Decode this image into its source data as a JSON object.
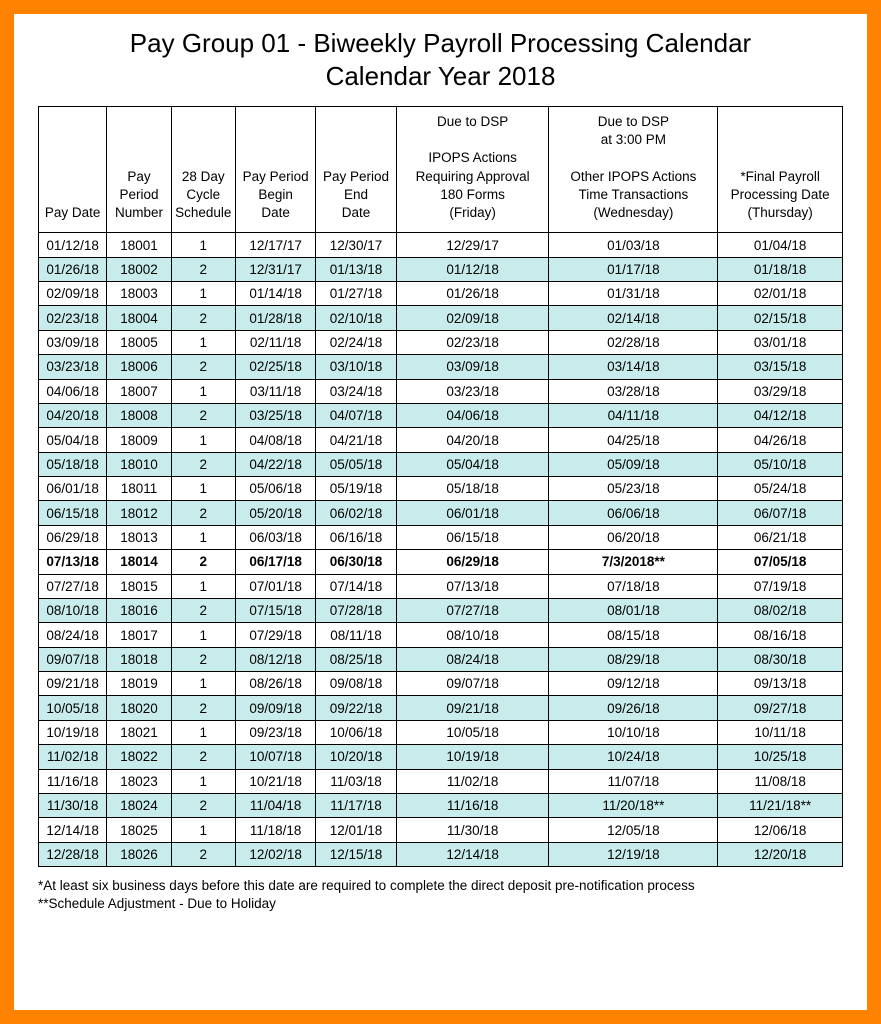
{
  "colors": {
    "border": "#ff8200",
    "shade": "#c8ecec",
    "text": "#000000",
    "background": "#ffffff"
  },
  "title": "Pay Group 01 - Biweekly Payroll Processing Calendar",
  "subtitle": "Calendar Year 2018",
  "table": {
    "headers": [
      "Pay Date",
      "Pay\nPeriod\nNumber",
      "28 Day\nCycle\nSchedule",
      "Pay Period\nBegin\nDate",
      "Pay Period\nEnd\nDate",
      "Due to DSP\n\nIPOPS Actions\nRequiring Approval\n180 Forms\n(Friday)",
      "Due to DSP\nat 3:00 PM\n\nOther IPOPS Actions\nTime Transactions\n(Wednesday)",
      "*Final Payroll\nProcessing Date\n(Thursday)"
    ],
    "rows": [
      {
        "shade": false,
        "bold": false,
        "cells": [
          "01/12/18",
          "18001",
          "1",
          "12/17/17",
          "12/30/17",
          "12/29/17",
          "01/03/18",
          "01/04/18"
        ]
      },
      {
        "shade": true,
        "bold": false,
        "cells": [
          "01/26/18",
          "18002",
          "2",
          "12/31/17",
          "01/13/18",
          "01/12/18",
          "01/17/18",
          "01/18/18"
        ]
      },
      {
        "shade": false,
        "bold": false,
        "cells": [
          "02/09/18",
          "18003",
          "1",
          "01/14/18",
          "01/27/18",
          "01/26/18",
          "01/31/18",
          "02/01/18"
        ]
      },
      {
        "shade": true,
        "bold": false,
        "cells": [
          "02/23/18",
          "18004",
          "2",
          "01/28/18",
          "02/10/18",
          "02/09/18",
          "02/14/18",
          "02/15/18"
        ]
      },
      {
        "shade": false,
        "bold": false,
        "cells": [
          "03/09/18",
          "18005",
          "1",
          "02/11/18",
          "02/24/18",
          "02/23/18",
          "02/28/18",
          "03/01/18"
        ]
      },
      {
        "shade": true,
        "bold": false,
        "cells": [
          "03/23/18",
          "18006",
          "2",
          "02/25/18",
          "03/10/18",
          "03/09/18",
          "03/14/18",
          "03/15/18"
        ]
      },
      {
        "shade": false,
        "bold": false,
        "cells": [
          "04/06/18",
          "18007",
          "1",
          "03/11/18",
          "03/24/18",
          "03/23/18",
          "03/28/18",
          "03/29/18"
        ]
      },
      {
        "shade": true,
        "bold": false,
        "cells": [
          "04/20/18",
          "18008",
          "2",
          "03/25/18",
          "04/07/18",
          "04/06/18",
          "04/11/18",
          "04/12/18"
        ]
      },
      {
        "shade": false,
        "bold": false,
        "cells": [
          "05/04/18",
          "18009",
          "1",
          "04/08/18",
          "04/21/18",
          "04/20/18",
          "04/25/18",
          "04/26/18"
        ]
      },
      {
        "shade": true,
        "bold": false,
        "cells": [
          "05/18/18",
          "18010",
          "2",
          "04/22/18",
          "05/05/18",
          "05/04/18",
          "05/09/18",
          "05/10/18"
        ]
      },
      {
        "shade": false,
        "bold": false,
        "cells": [
          "06/01/18",
          "18011",
          "1",
          "05/06/18",
          "05/19/18",
          "05/18/18",
          "05/23/18",
          "05/24/18"
        ]
      },
      {
        "shade": true,
        "bold": false,
        "cells": [
          "06/15/18",
          "18012",
          "2",
          "05/20/18",
          "06/02/18",
          "06/01/18",
          "06/06/18",
          "06/07/18"
        ]
      },
      {
        "shade": false,
        "bold": false,
        "cells": [
          "06/29/18",
          "18013",
          "1",
          "06/03/18",
          "06/16/18",
          "06/15/18",
          "06/20/18",
          "06/21/18"
        ]
      },
      {
        "shade": false,
        "bold": true,
        "cells": [
          "07/13/18",
          "18014",
          "2",
          "06/17/18",
          "06/30/18",
          "06/29/18",
          "7/3/2018**",
          "07/05/18"
        ]
      },
      {
        "shade": false,
        "bold": false,
        "cells": [
          "07/27/18",
          "18015",
          "1",
          "07/01/18",
          "07/14/18",
          "07/13/18",
          "07/18/18",
          "07/19/18"
        ]
      },
      {
        "shade": true,
        "bold": false,
        "cells": [
          "08/10/18",
          "18016",
          "2",
          "07/15/18",
          "07/28/18",
          "07/27/18",
          "08/01/18",
          "08/02/18"
        ]
      },
      {
        "shade": false,
        "bold": false,
        "cells": [
          "08/24/18",
          "18017",
          "1",
          "07/29/18",
          "08/11/18",
          "08/10/18",
          "08/15/18",
          "08/16/18"
        ]
      },
      {
        "shade": true,
        "bold": false,
        "cells": [
          "09/07/18",
          "18018",
          "2",
          "08/12/18",
          "08/25/18",
          "08/24/18",
          "08/29/18",
          "08/30/18"
        ]
      },
      {
        "shade": false,
        "bold": false,
        "cells": [
          "09/21/18",
          "18019",
          "1",
          "08/26/18",
          "09/08/18",
          "09/07/18",
          "09/12/18",
          "09/13/18"
        ]
      },
      {
        "shade": true,
        "bold": false,
        "cells": [
          "10/05/18",
          "18020",
          "2",
          "09/09/18",
          "09/22/18",
          "09/21/18",
          "09/26/18",
          "09/27/18"
        ]
      },
      {
        "shade": false,
        "bold": false,
        "cells": [
          "10/19/18",
          "18021",
          "1",
          "09/23/18",
          "10/06/18",
          "10/05/18",
          "10/10/18",
          "10/11/18"
        ]
      },
      {
        "shade": true,
        "bold": false,
        "cells": [
          "11/02/18",
          "18022",
          "2",
          "10/07/18",
          "10/20/18",
          "10/19/18",
          "10/24/18",
          "10/25/18"
        ]
      },
      {
        "shade": false,
        "bold": false,
        "cells": [
          "11/16/18",
          "18023",
          "1",
          "10/21/18",
          "11/03/18",
          "11/02/18",
          "11/07/18",
          "11/08/18"
        ]
      },
      {
        "shade": true,
        "bold": false,
        "cells": [
          "11/30/18",
          "18024",
          "2",
          "11/04/18",
          "11/17/18",
          "11/16/18",
          "11/20/18**",
          "11/21/18**"
        ]
      },
      {
        "shade": false,
        "bold": false,
        "cells": [
          "12/14/18",
          "18025",
          "1",
          "11/18/18",
          "12/01/18",
          "11/30/18",
          "12/05/18",
          "12/06/18"
        ]
      },
      {
        "shade": true,
        "bold": false,
        "cells": [
          "12/28/18",
          "18026",
          "2",
          "12/02/18",
          "12/15/18",
          "12/14/18",
          "12/19/18",
          "12/20/18"
        ]
      }
    ]
  },
  "footnotes": [
    "*At least six business days before this date are required to complete the direct deposit pre-notification process",
    "**Schedule Adjustment - Due to Holiday"
  ]
}
